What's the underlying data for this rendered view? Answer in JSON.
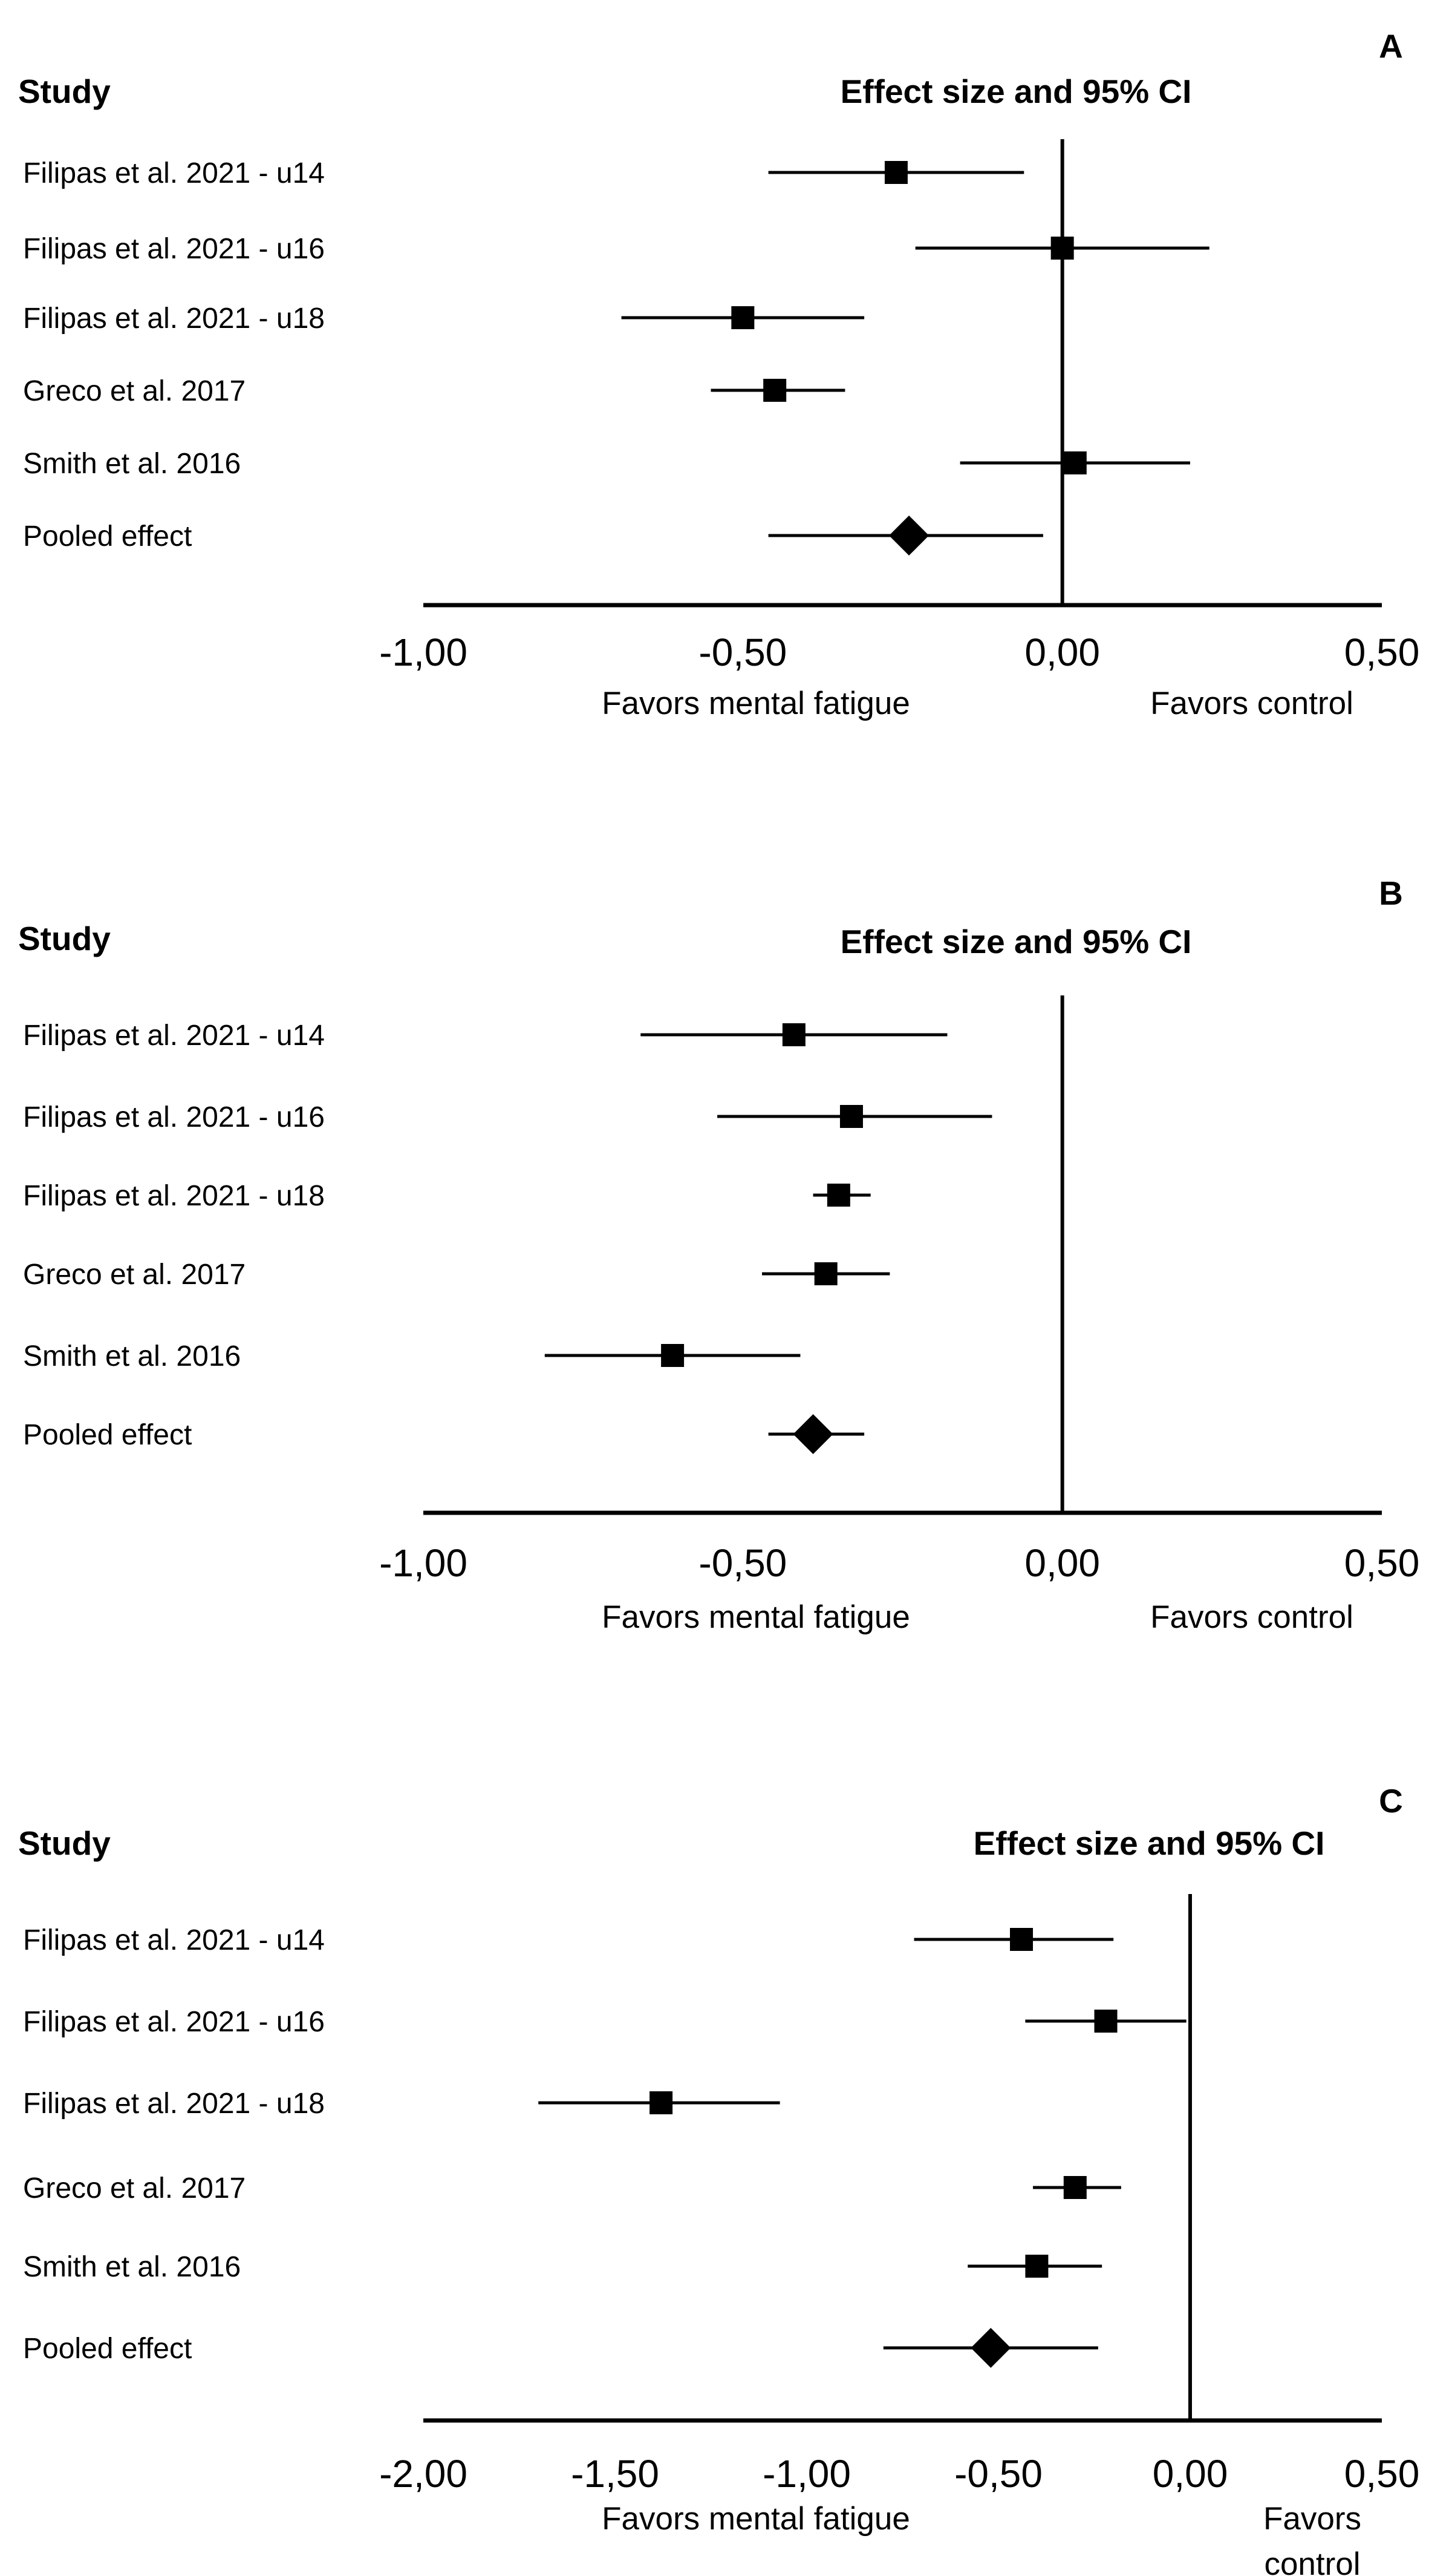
{
  "chart_data": [
    {
      "type": "forest",
      "panel_label": "A",
      "column_header": "Study",
      "title": "Effect size and 95% CI",
      "xlim": [
        -1.0,
        0.5
      ],
      "xticks": [
        -1.0,
        -0.5,
        0.0,
        0.5
      ],
      "xtick_labels": [
        "-1,00",
        "-0,50",
        "0,00",
        "0,50"
      ],
      "favors_left": "Favors mental fatigue",
      "favors_right": "Favors control",
      "studies": [
        {
          "label": "Filipas et al. 2021 - u14",
          "effect": -0.26,
          "ci_low": -0.46,
          "ci_high": -0.06,
          "marker": "square"
        },
        {
          "label": "Filipas et al. 2021 - u16",
          "effect": 0.0,
          "ci_low": -0.23,
          "ci_high": 0.23,
          "marker": "square"
        },
        {
          "label": "Filipas et al. 2021 - u18",
          "effect": -0.5,
          "ci_low": -0.69,
          "ci_high": -0.31,
          "marker": "square"
        },
        {
          "label": "Greco et al. 2017",
          "effect": -0.45,
          "ci_low": -0.55,
          "ci_high": -0.34,
          "marker": "square"
        },
        {
          "label": "Smith et al. 2016",
          "effect": 0.02,
          "ci_low": -0.16,
          "ci_high": 0.2,
          "marker": "square"
        },
        {
          "label": "Pooled effect",
          "effect": -0.24,
          "ci_low": -0.46,
          "ci_high": -0.03,
          "marker": "diamond"
        }
      ]
    },
    {
      "type": "forest",
      "panel_label": "B",
      "column_header": "Study",
      "title": "Effect size and 95% CI",
      "xlim": [
        -1.0,
        0.5
      ],
      "xticks": [
        -1.0,
        -0.5,
        0.0,
        0.5
      ],
      "xtick_labels": [
        "-1,00",
        "-0,50",
        "0,00",
        "0,50"
      ],
      "favors_left": "Favors mental fatigue",
      "favors_right": "Favors control",
      "studies": [
        {
          "label": "Filipas et al. 2021 - u14",
          "effect": -0.42,
          "ci_low": -0.66,
          "ci_high": -0.18,
          "marker": "square"
        },
        {
          "label": "Filipas et al. 2021 - u16",
          "effect": -0.33,
          "ci_low": -0.54,
          "ci_high": -0.11,
          "marker": "square"
        },
        {
          "label": "Filipas et al. 2021 - u18",
          "effect": -0.35,
          "ci_low": -0.39,
          "ci_high": -0.3,
          "marker": "square"
        },
        {
          "label": "Greco et al. 2017",
          "effect": -0.37,
          "ci_low": -0.47,
          "ci_high": -0.27,
          "marker": "square"
        },
        {
          "label": "Smith et al. 2016",
          "effect": -0.61,
          "ci_low": -0.81,
          "ci_high": -0.41,
          "marker": "square"
        },
        {
          "label": "Pooled effect",
          "effect": -0.39,
          "ci_low": -0.46,
          "ci_high": -0.31,
          "marker": "diamond"
        }
      ]
    },
    {
      "type": "forest",
      "panel_label": "C",
      "column_header": "Study",
      "title": "Effect size and 95% CI",
      "xlim": [
        -2.0,
        0.5
      ],
      "xticks": [
        -2.0,
        -1.5,
        -1.0,
        -0.5,
        0.0,
        0.5
      ],
      "xtick_labels": [
        "-2,00",
        "-1,50",
        "-1,00",
        "-0,50",
        "0,00",
        "0,50"
      ],
      "favors_left": "Favors mental fatigue",
      "favors_right": "Favors control",
      "studies": [
        {
          "label": "Filipas et al. 2021 - u14",
          "effect": -0.44,
          "ci_low": -0.72,
          "ci_high": -0.2,
          "marker": "square"
        },
        {
          "label": "Filipas et al. 2021 - u16",
          "effect": -0.22,
          "ci_low": -0.43,
          "ci_high": -0.01,
          "marker": "square"
        },
        {
          "label": "Filipas et al. 2021 - u18",
          "effect": -1.38,
          "ci_low": -1.7,
          "ci_high": -1.07,
          "marker": "square"
        },
        {
          "label": "Greco et al. 2017",
          "effect": -0.3,
          "ci_low": -0.41,
          "ci_high": -0.18,
          "marker": "square"
        },
        {
          "label": "Smith et al. 2016",
          "effect": -0.4,
          "ci_low": -0.58,
          "ci_high": -0.23,
          "marker": "square"
        },
        {
          "label": "Pooled effect",
          "effect": -0.52,
          "ci_low": -0.8,
          "ci_high": -0.24,
          "marker": "diamond"
        }
      ]
    }
  ]
}
